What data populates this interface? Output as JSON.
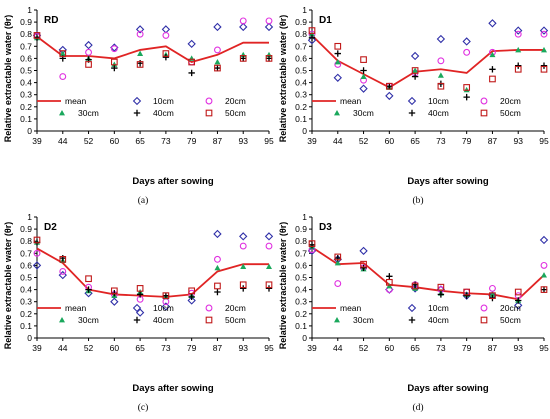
{
  "colors": {
    "mean": "#e02424",
    "d10": "#3030a8",
    "d20": "#e030e0",
    "d30": "#1aa85c",
    "d40": "#000000",
    "d50": "#c01818"
  },
  "legend": [
    {
      "key": "mean",
      "label": "mean",
      "marker": "line"
    },
    {
      "key": "d10",
      "label": "10cm",
      "marker": "diamond"
    },
    {
      "key": "d20",
      "label": "20cm",
      "marker": "circle"
    },
    {
      "key": "d30",
      "label": "30cm",
      "marker": "triangle"
    },
    {
      "key": "d40",
      "label": "40cm",
      "marker": "plus"
    },
    {
      "key": "d50",
      "label": "50cm",
      "marker": "square"
    }
  ],
  "chart_data": [
    {
      "type": "line",
      "title": "RD",
      "caption": "(a)",
      "xlabel": "Days after sowing",
      "ylabel": "Relative extractable water (θr)",
      "x": [
        39,
        44,
        52,
        60,
        65,
        73,
        79,
        87,
        93,
        95
      ],
      "x_ticks": [
        "39",
        "44",
        "52",
        "60",
        "65",
        "73",
        "79",
        "87",
        "93",
        "95"
      ],
      "ylim": [
        0,
        1
      ],
      "y_ticks": [
        "0",
        "0.1",
        "0.2",
        "0.3",
        "0.4",
        "0.5",
        "0.6",
        "0.7",
        "0.8",
        "0.9",
        "1"
      ],
      "legend_position": "bottom",
      "series": [
        {
          "key": "mean",
          "name": "mean",
          "values": [
            0.78,
            0.62,
            0.62,
            0.6,
            0.67,
            0.7,
            0.57,
            0.63,
            0.73,
            0.73
          ]
        },
        {
          "key": "d10",
          "name": "10cm",
          "values": [
            0.79,
            0.67,
            0.71,
            0.69,
            0.84,
            0.84,
            0.72,
            0.86,
            0.86,
            0.86
          ]
        },
        {
          "key": "d20",
          "name": "20cm",
          "values": [
            0.78,
            0.45,
            0.65,
            0.68,
            0.8,
            0.79,
            0.57,
            0.67,
            0.91,
            0.91
          ]
        },
        {
          "key": "d30",
          "name": "30cm",
          "values": [
            0.77,
            0.64,
            0.6,
            0.55,
            0.64,
            0.63,
            0.6,
            0.57,
            0.63,
            0.63
          ]
        },
        {
          "key": "d40",
          "name": "40cm",
          "values": [
            0.77,
            0.6,
            0.59,
            0.52,
            0.56,
            0.61,
            0.48,
            0.52,
            0.6,
            0.6
          ]
        },
        {
          "key": "d50",
          "name": "50cm",
          "values": [
            0.79,
            0.64,
            0.55,
            0.57,
            0.55,
            0.64,
            0.57,
            0.52,
            0.6,
            0.6
          ]
        }
      ]
    },
    {
      "type": "line",
      "title": "D1",
      "caption": "(b)",
      "xlabel": "Days after sowing",
      "ylabel": "Relative extractable water (θr)",
      "x": [
        39,
        44,
        52,
        60,
        65,
        73,
        79,
        87,
        93,
        95
      ],
      "x_ticks": [
        "39",
        "44",
        "52",
        "60",
        "65",
        "73",
        "79",
        "87",
        "93",
        "95"
      ],
      "ylim": [
        0,
        1
      ],
      "y_ticks": [
        "0",
        "0.1",
        "0.2",
        "0.3",
        "0.4",
        "0.5",
        "0.6",
        "0.7",
        "0.8",
        "0.9",
        "1"
      ],
      "legend_position": "bottom",
      "series": [
        {
          "key": "mean",
          "name": "mean",
          "values": [
            0.79,
            0.58,
            0.47,
            0.36,
            0.49,
            0.51,
            0.48,
            0.66,
            0.67,
            0.67
          ]
        },
        {
          "key": "d10",
          "name": "10cm",
          "values": [
            0.75,
            0.44,
            0.35,
            0.29,
            0.62,
            0.76,
            0.74,
            0.89,
            0.83,
            0.83
          ]
        },
        {
          "key": "d20",
          "name": "20cm",
          "values": [
            0.8,
            0.55,
            0.42,
            0.37,
            0.48,
            0.58,
            0.65,
            0.65,
            0.8,
            0.8
          ]
        },
        {
          "key": "d30",
          "name": "30cm",
          "values": [
            0.8,
            0.57,
            0.45,
            0.36,
            0.5,
            0.46,
            0.34,
            0.63,
            0.67,
            0.67
          ]
        },
        {
          "key": "d40",
          "name": "40cm",
          "values": [
            0.77,
            0.64,
            0.5,
            0.37,
            0.45,
            0.39,
            0.28,
            0.51,
            0.54,
            0.54
          ]
        },
        {
          "key": "d50",
          "name": "50cm",
          "values": [
            0.83,
            0.7,
            0.59,
            0.37,
            0.5,
            0.37,
            0.36,
            0.43,
            0.51,
            0.51
          ]
        }
      ]
    },
    {
      "type": "line",
      "title": "D2",
      "caption": "(c)",
      "xlabel": "Days after sowing",
      "ylabel": "Relative extractable water (θr)",
      "x": [
        39,
        44,
        52,
        60,
        65,
        73,
        79,
        87,
        93,
        95
      ],
      "x_ticks": [
        "39",
        "44",
        "52",
        "60",
        "65",
        "73",
        "79",
        "87",
        "93",
        "95"
      ],
      "ylim": [
        0,
        1
      ],
      "y_ticks": [
        "0",
        "0.1",
        "0.2",
        "0.3",
        "0.4",
        "0.5",
        "0.6",
        "0.7",
        "0.8",
        "0.9",
        "1"
      ],
      "legend_position": "bottom",
      "series": [
        {
          "key": "mean",
          "name": "mean",
          "values": [
            0.74,
            0.62,
            0.4,
            0.36,
            0.35,
            0.34,
            0.36,
            0.55,
            0.61,
            0.61
          ]
        },
        {
          "key": "d10",
          "name": "10cm",
          "values": [
            0.6,
            0.52,
            0.37,
            0.3,
            0.21,
            0.26,
            0.31,
            0.86,
            0.84,
            0.84
          ]
        },
        {
          "key": "d20",
          "name": "20cm",
          "values": [
            0.7,
            0.55,
            0.42,
            0.36,
            0.32,
            0.3,
            0.37,
            0.65,
            0.76,
            0.76
          ]
        },
        {
          "key": "d30",
          "name": "30cm",
          "values": [
            0.79,
            0.64,
            0.39,
            0.35,
            0.38,
            0.34,
            0.35,
            0.58,
            0.59,
            0.59
          ]
        },
        {
          "key": "d40",
          "name": "40cm",
          "values": [
            0.79,
            0.66,
            0.4,
            0.37,
            0.36,
            0.35,
            0.34,
            0.38,
            0.41,
            0.41
          ]
        },
        {
          "key": "d50",
          "name": "50cm",
          "values": [
            0.81,
            0.65,
            0.49,
            0.39,
            0.41,
            0.35,
            0.39,
            0.43,
            0.44,
            0.44
          ]
        }
      ]
    },
    {
      "type": "line",
      "title": "D3",
      "caption": "(d)",
      "xlabel": "Days after sowing",
      "ylabel": "Relative extractable water (θr)",
      "x": [
        39,
        44,
        52,
        60,
        65,
        73,
        79,
        87,
        93,
        95
      ],
      "x_ticks": [
        "39",
        "44",
        "52",
        "60",
        "65",
        "73",
        "79",
        "87",
        "93",
        "95"
      ],
      "ylim": [
        0,
        1
      ],
      "y_ticks": [
        "0",
        "0.1",
        "0.2",
        "0.3",
        "0.4",
        "0.5",
        "0.6",
        "0.7",
        "0.8",
        "0.9",
        "1"
      ],
      "legend_position": "bottom",
      "series": [
        {
          "key": "mean",
          "name": "mean",
          "values": [
            0.75,
            0.61,
            0.62,
            0.44,
            0.42,
            0.39,
            0.37,
            0.36,
            0.32,
            0.52
          ]
        },
        {
          "key": "d10",
          "name": "10cm",
          "values": [
            0.72,
            0.65,
            0.72,
            0.4,
            0.41,
            0.4,
            0.35,
            0.35,
            0.27,
            0.81
          ]
        },
        {
          "key": "d20",
          "name": "20cm",
          "values": [
            0.73,
            0.45,
            0.58,
            0.4,
            0.44,
            0.4,
            0.38,
            0.41,
            0.35,
            0.6
          ]
        },
        {
          "key": "d30",
          "name": "30cm",
          "values": [
            0.76,
            0.62,
            0.57,
            0.43,
            0.41,
            0.37,
            0.36,
            0.36,
            0.31,
            0.52
          ]
        },
        {
          "key": "d40",
          "name": "40cm",
          "values": [
            0.77,
            0.66,
            0.58,
            0.51,
            0.44,
            0.36,
            0.35,
            0.33,
            0.31,
            0.4
          ]
        },
        {
          "key": "d50",
          "name": "50cm",
          "values": [
            0.78,
            0.67,
            0.61,
            0.46,
            0.43,
            0.42,
            0.38,
            0.35,
            0.38,
            0.4
          ]
        }
      ]
    }
  ]
}
